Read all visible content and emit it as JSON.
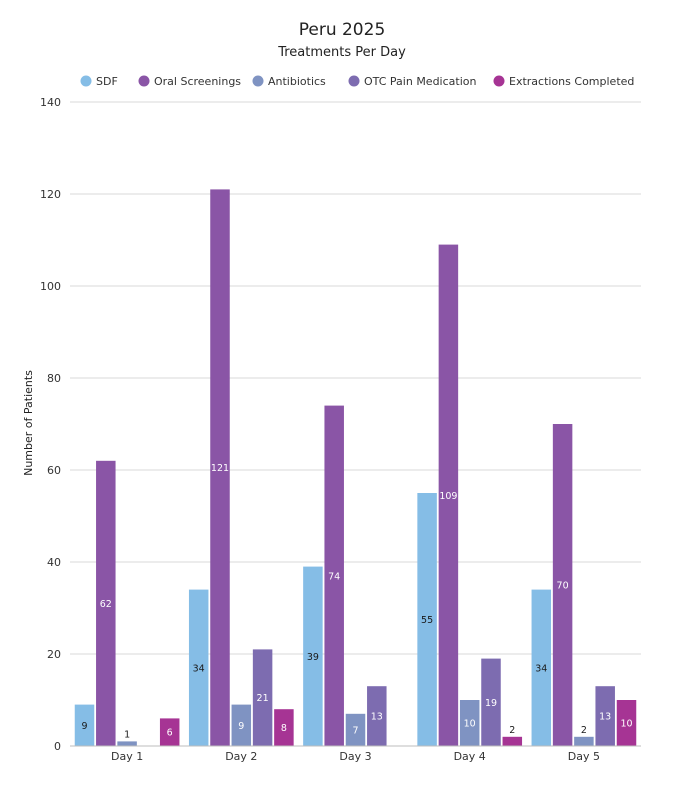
{
  "chart_data": {
    "type": "bar",
    "title": "Peru 2025",
    "subtitle": "Treatments Per Day",
    "xlabel": "",
    "ylabel": "Number of Patients",
    "ylim": [
      0,
      140
    ],
    "yticks": [
      0,
      20,
      40,
      60,
      80,
      100,
      120,
      140
    ],
    "ytick_labels": [
      "0",
      "20",
      "40",
      "60",
      "80",
      "100",
      "120",
      "140"
    ],
    "legend_position": "top",
    "grid": true,
    "categories": [
      "Day 1",
      "Day 2",
      "Day 3",
      "Day 4",
      "Day 5"
    ],
    "series": [
      {
        "name": "SDF",
        "color": "#85bde6",
        "values": [
          9,
          34,
          39,
          55,
          34
        ],
        "labels": [
          "9",
          "34",
          "39",
          "55",
          "34"
        ],
        "label_color": "#1a1a1a"
      },
      {
        "name": "Oral Screenings",
        "color": "#8a55a6",
        "values": [
          62,
          121,
          74,
          109,
          70
        ],
        "labels": [
          "62",
          "121",
          "74",
          "109",
          "70"
        ],
        "label_color": "#ffffff"
      },
      {
        "name": "Antibiotics",
        "color": "#7f93c2",
        "values": [
          1,
          9,
          7,
          10,
          2
        ],
        "labels": [
          "1",
          "9",
          "7",
          "10",
          "2"
        ],
        "label_color": "#ffffff"
      },
      {
        "name": "OTC Pain Medication",
        "color": "#7d6cb0",
        "values": [
          0,
          21,
          13,
          19,
          13
        ],
        "labels": [
          "",
          "21",
          "13",
          "19",
          "13"
        ],
        "label_color": "#ffffff"
      },
      {
        "name": "Extractions Completed",
        "color": "#a63494",
        "values": [
          6,
          8,
          0,
          2,
          10
        ],
        "labels": [
          "6",
          "8",
          "",
          "2",
          "10"
        ],
        "label_color": "#ffffff"
      }
    ]
  }
}
